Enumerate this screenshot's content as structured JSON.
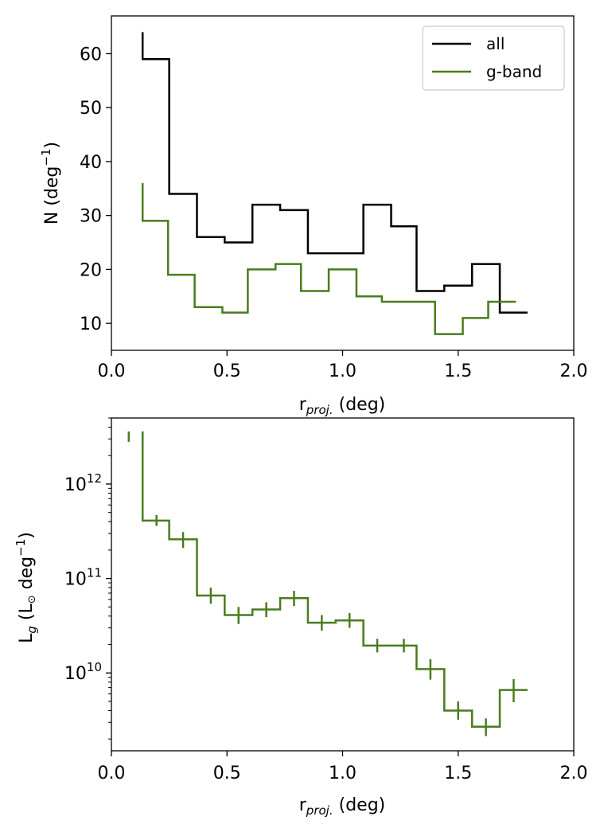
{
  "chart_data": [
    {
      "type": "line",
      "drawstyle": "steps",
      "xlabel_main": "r",
      "xlabel_sub": "proj.",
      "xlabel_tail": "(deg)",
      "ylabel_main": "N (deg",
      "ylabel_sup": "−1",
      "ylabel_tail": ")",
      "xlim": [
        0.0,
        2.0
      ],
      "ylim": [
        5,
        67
      ],
      "x_ticks": [
        0.0,
        0.5,
        1.0,
        1.5,
        2.0
      ],
      "x_tick_labels": [
        "0.0",
        "0.5",
        "1.0",
        "1.5",
        "2.0"
      ],
      "y_ticks": [
        10,
        20,
        30,
        40,
        50,
        60
      ],
      "y_tick_labels": [
        "10",
        "20",
        "30",
        "40",
        "50",
        "60"
      ],
      "grid": false,
      "legend_position": "top-right",
      "series": [
        {
          "name": "all",
          "color": "#000000",
          "x": [
            0.135,
            0.135,
            0.25,
            0.37,
            0.49,
            0.61,
            0.73,
            0.85,
            0.97,
            1.09,
            1.21,
            1.32,
            1.44,
            1.56,
            1.68,
            1.8
          ],
          "y": [
            64,
            59,
            34,
            26,
            25,
            32,
            31,
            23,
            23,
            32,
            28,
            16,
            17,
            21,
            12,
            12
          ]
        },
        {
          "name": "g-band",
          "color": "#4a7c1e",
          "x": [
            0.135,
            0.135,
            0.245,
            0.36,
            0.48,
            0.59,
            0.71,
            0.82,
            0.94,
            1.06,
            1.17,
            1.29,
            1.4,
            1.52,
            1.63,
            1.75
          ],
          "y": [
            36,
            29,
            19,
            13,
            12,
            20,
            21,
            16,
            20,
            15,
            14,
            14,
            8,
            11,
            14,
            14
          ]
        }
      ]
    },
    {
      "type": "line",
      "drawstyle": "steps",
      "xlabel_main": "r",
      "xlabel_sub": "proj.",
      "xlabel_tail": "(deg)",
      "ylabel_main": "L",
      "ylabel_sub": "g",
      "ylabel_mid": " (L",
      "ylabel_sym": "⊙",
      "ylabel_tail2": " deg",
      "ylabel_sup": "−1",
      "ylabel_tail": ")",
      "xlim": [
        0.0,
        2.0
      ],
      "ylim": [
        1500000000.0,
        5000000000000.0
      ],
      "yscale": "log",
      "x_ticks": [
        0.0,
        0.5,
        1.0,
        1.5,
        2.0
      ],
      "x_tick_labels": [
        "0.0",
        "0.5",
        "1.0",
        "1.5",
        "2.0"
      ],
      "y_ticks": [
        10000000000.0,
        100000000000.0,
        1000000000000.0
      ],
      "y_tick_base": "10",
      "y_tick_exps": [
        "10",
        "11",
        "12"
      ],
      "grid": false,
      "series": [
        {
          "color": "#4a7c1e",
          "x": [
            0.135,
            0.25,
            0.37,
            0.49,
            0.61,
            0.73,
            0.85,
            0.97,
            1.09,
            1.21,
            1.32,
            1.44,
            1.56,
            1.68,
            1.8
          ],
          "y": [
            410000000000.0,
            260000000000.0,
            66000000000.0,
            41000000000.0,
            47000000000.0,
            62000000000.0,
            34000000000.0,
            36000000000.0,
            19500000000.0,
            19500000000.0,
            11000000000.0,
            4000000000.0,
            2700000000.0,
            6600000000.0,
            6600000000.0
          ],
          "errorbars": [
            {
              "x": 0.075,
              "y": 3200000000000.0,
              "lo": 2800000000000.0,
              "hi": 3600000000000.0
            },
            {
              "x": 0.135,
              "y": 3200000000000.0,
              "lo": 2600000000000.0,
              "hi": 3600000000000.0
            },
            {
              "x": 0.195,
              "y": 410000000000.0,
              "lo": 360000000000.0,
              "hi": 470000000000.0
            },
            {
              "x": 0.31,
              "y": 260000000000.0,
              "lo": 210000000000.0,
              "hi": 310000000000.0
            },
            {
              "x": 0.43,
              "y": 66000000000.0,
              "lo": 54000000000.0,
              "hi": 80000000000.0
            },
            {
              "x": 0.55,
              "y": 41000000000.0,
              "lo": 33000000000.0,
              "hi": 50000000000.0
            },
            {
              "x": 0.67,
              "y": 47000000000.0,
              "lo": 39000000000.0,
              "hi": 56000000000.0
            },
            {
              "x": 0.79,
              "y": 62000000000.0,
              "lo": 51000000000.0,
              "hi": 74000000000.0
            },
            {
              "x": 0.91,
              "y": 34000000000.0,
              "lo": 28000000000.0,
              "hi": 41000000000.0
            },
            {
              "x": 1.03,
              "y": 36000000000.0,
              "lo": 30000000000.0,
              "hi": 43000000000.0
            },
            {
              "x": 1.15,
              "y": 19500000000.0,
              "lo": 16500000000.0,
              "hi": 23000000000.0
            },
            {
              "x": 1.265,
              "y": 19500000000.0,
              "lo": 16500000000.0,
              "hi": 23000000000.0
            },
            {
              "x": 1.38,
              "y": 11000000000.0,
              "lo": 8500000000.0,
              "hi": 14000000000.0
            },
            {
              "x": 1.5,
              "y": 4000000000.0,
              "lo": 3200000000.0,
              "hi": 5000000000.0
            },
            {
              "x": 1.62,
              "y": 2700000000.0,
              "lo": 2150000000.0,
              "hi": 3300000000.0
            },
            {
              "x": 1.74,
              "y": 6600000000.0,
              "lo": 4900000000.0,
              "hi": 8600000000.0
            }
          ]
        }
      ]
    }
  ]
}
